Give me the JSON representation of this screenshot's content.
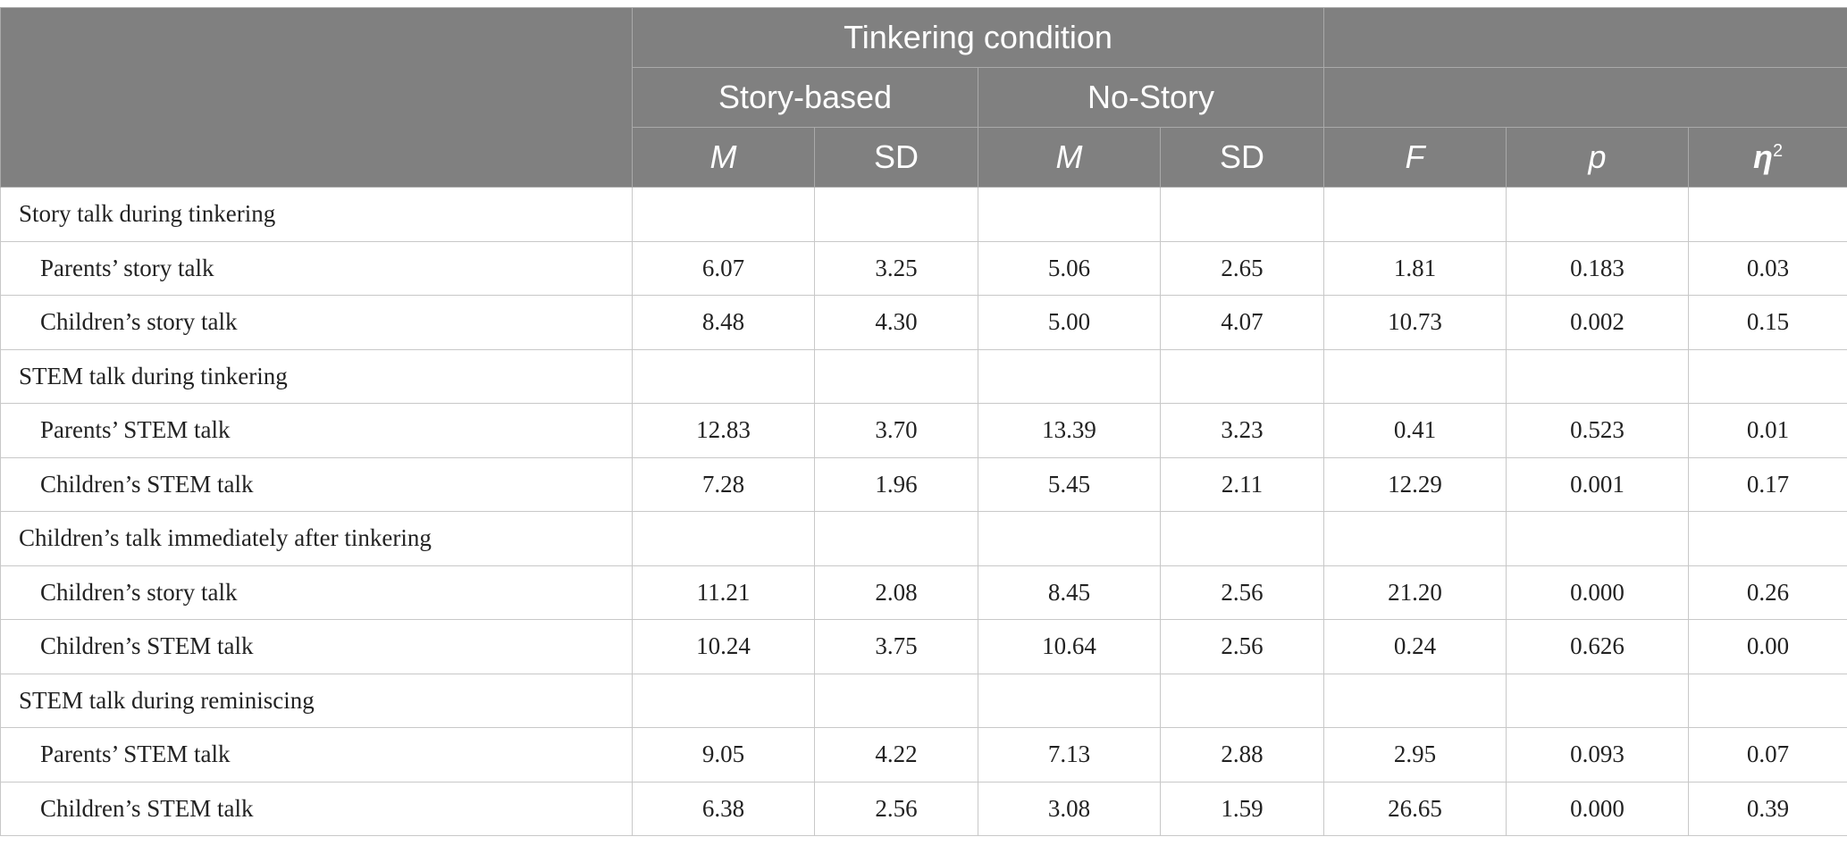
{
  "header": {
    "group_label": "Tinkering condition",
    "conditions": [
      "Story-based",
      "No-Story"
    ],
    "columns": [
      "M",
      "SD",
      "M",
      "SD",
      "F",
      "p",
      "η",
      "2"
    ]
  },
  "sections": [
    {
      "title": "Story talk during tinkering",
      "rows": [
        {
          "label": "Parents’ story talk",
          "values": [
            "6.07",
            "3.25",
            "5.06",
            "2.65",
            "1.81",
            "0.183",
            "0.03"
          ]
        },
        {
          "label": "Children’s story talk",
          "values": [
            "8.48",
            "4.30",
            "5.00",
            "4.07",
            "10.73",
            "0.002",
            "0.15"
          ]
        }
      ]
    },
    {
      "title": "STEM talk during tinkering",
      "rows": [
        {
          "label": "Parents’ STEM talk",
          "values": [
            "12.83",
            "3.70",
            "13.39",
            "3.23",
            "0.41",
            "0.523",
            "0.01"
          ]
        },
        {
          "label": "Children’s STEM talk",
          "values": [
            "7.28",
            "1.96",
            "5.45",
            "2.11",
            "12.29",
            "0.001",
            "0.17"
          ]
        }
      ]
    },
    {
      "title": "Children’s talk immediately after tinkering",
      "rows": [
        {
          "label": "Children’s story talk",
          "values": [
            "11.21",
            "2.08",
            "8.45",
            "2.56",
            "21.20",
            "0.000",
            "0.26"
          ]
        },
        {
          "label": "Children’s STEM talk",
          "values": [
            "10.24",
            "3.75",
            "10.64",
            "2.56",
            "0.24",
            "0.626",
            "0.00"
          ]
        }
      ]
    },
    {
      "title": "STEM talk during reminiscing",
      "rows": [
        {
          "label": "Parents’ STEM talk",
          "values": [
            "9.05",
            "4.22",
            "7.13",
            "2.88",
            "2.95",
            "0.093",
            "0.07"
          ]
        },
        {
          "label": "Children’s STEM talk",
          "values": [
            "6.38",
            "2.56",
            "3.08",
            "1.59",
            "26.65",
            "0.000",
            "0.39"
          ]
        }
      ]
    }
  ]
}
